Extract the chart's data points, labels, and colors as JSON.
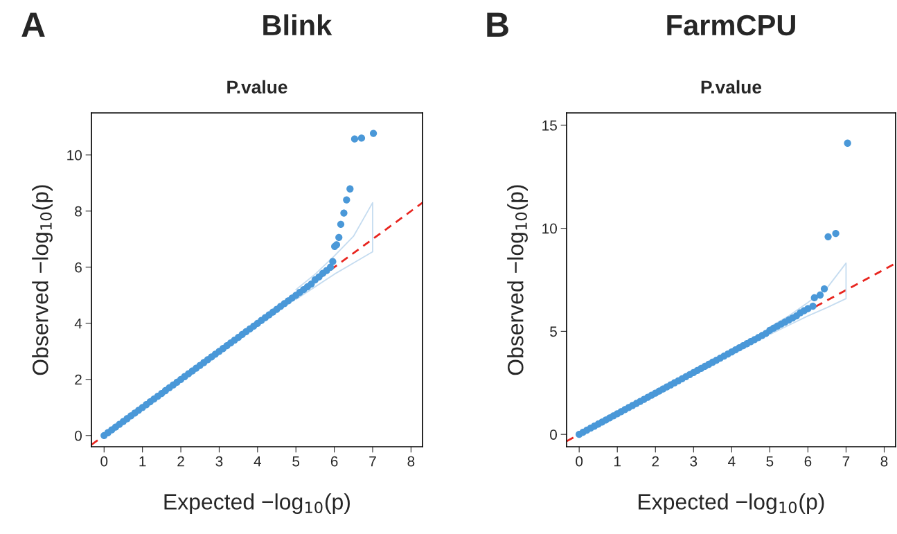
{
  "chart_data": [
    {
      "type": "scatter",
      "title": "Blink",
      "subtitle": "P.value",
      "xlabel": "Expected −log$_{10}$(p)",
      "ylabel": "Observed −log$_{10}$(p)",
      "annotations": [
        "A"
      ],
      "xlim": [
        -0.33,
        8.3
      ],
      "ylim": [
        -0.4,
        11.5
      ],
      "xticks": [
        0,
        1,
        2,
        3,
        4,
        5,
        6,
        7,
        8
      ],
      "yticks": [
        0,
        2,
        4,
        6,
        8,
        10
      ],
      "grid": false,
      "legend": false,
      "series": [
        {
          "type": "line",
          "color": "#e8251f",
          "line_style": "dashed",
          "marker": "none",
          "x": [
            -0.33,
            8.3
          ],
          "values": [
            -0.33,
            8.3
          ]
        },
        {
          "type": "line",
          "color": "#c5dcf0",
          "line_style": "solid",
          "marker": "none",
          "x": [
            5.0,
            5.5,
            6.0,
            6.5,
            7.0,
            7.0,
            6.5,
            6.0,
            5.5,
            5.0
          ],
          "values": [
            5.2,
            5.75,
            6.4,
            7.1,
            8.3,
            6.55,
            6.15,
            5.75,
            5.3,
            4.85
          ]
        },
        {
          "type": "scatter",
          "color": "#4a98d8",
          "marker": "circle",
          "x": [
            0,
            0.1,
            0.2,
            0.3,
            0.4,
            0.5,
            0.6,
            0.7,
            0.8,
            0.9,
            1.0,
            1.1,
            1.2,
            1.3,
            1.4,
            1.5,
            1.6,
            1.7,
            1.8,
            1.9,
            2.0,
            2.1,
            2.2,
            2.3,
            2.4,
            2.5,
            2.6,
            2.7,
            2.8,
            2.9,
            3.0,
            3.1,
            3.2,
            3.3,
            3.4,
            3.5,
            3.6,
            3.7,
            3.8,
            3.9,
            4.0,
            4.1,
            4.2,
            4.3,
            4.4,
            4.5,
            4.6,
            4.7,
            4.8,
            4.9,
            5.0,
            5.1,
            5.2,
            5.3,
            5.4,
            5.5,
            5.6,
            5.7,
            5.8,
            5.9,
            5.96,
            6.01,
            6.06,
            6.12,
            6.17,
            6.25,
            6.32,
            6.41,
            6.53,
            6.71,
            7.02
          ],
          "values": [
            0,
            0.1,
            0.2,
            0.3,
            0.4,
            0.5,
            0.6,
            0.7,
            0.8,
            0.9,
            1.0,
            1.1,
            1.2,
            1.3,
            1.4,
            1.5,
            1.6,
            1.7,
            1.8,
            1.9,
            2.0,
            2.1,
            2.2,
            2.3,
            2.4,
            2.5,
            2.6,
            2.7,
            2.8,
            2.9,
            3.0,
            3.1,
            3.2,
            3.3,
            3.4,
            3.5,
            3.6,
            3.7,
            3.8,
            3.9,
            4.0,
            4.1,
            4.2,
            4.3,
            4.4,
            4.5,
            4.6,
            4.7,
            4.8,
            4.9,
            5.0,
            5.1,
            5.2,
            5.3,
            5.4,
            5.55,
            5.65,
            5.78,
            5.88,
            6.0,
            6.2,
            6.74,
            6.8,
            7.06,
            7.53,
            7.93,
            8.4,
            8.79,
            10.57,
            10.6,
            10.77
          ]
        }
      ]
    },
    {
      "type": "scatter",
      "title": "FarmCPU",
      "subtitle": "P.value",
      "xlabel": "Expected −log$_{10}$(p)",
      "ylabel": "Observed −log$_{10}$(p)",
      "annotations": [
        "B"
      ],
      "xlim": [
        -0.33,
        8.3
      ],
      "ylim": [
        -0.6,
        15.6
      ],
      "xticks": [
        0,
        1,
        2,
        3,
        4,
        5,
        6,
        7,
        8
      ],
      "yticks": [
        0,
        5,
        10,
        15
      ],
      "grid": false,
      "legend": false,
      "series": [
        {
          "type": "line",
          "color": "#e8251f",
          "line_style": "dashed",
          "marker": "none",
          "x": [
            -0.33,
            8.3
          ],
          "values": [
            -0.33,
            8.3
          ]
        },
        {
          "type": "line",
          "color": "#c5dcf0",
          "line_style": "solid",
          "marker": "none",
          "x": [
            5.0,
            5.5,
            6.0,
            6.5,
            7.0,
            7.0,
            6.5,
            6.0,
            5.5,
            5.0
          ],
          "values": [
            5.2,
            5.75,
            6.4,
            7.1,
            8.31,
            6.59,
            6.15,
            5.75,
            5.3,
            4.85
          ]
        },
        {
          "type": "scatter",
          "color": "#4a98d8",
          "marker": "circle",
          "x": [
            0,
            0.1,
            0.2,
            0.3,
            0.4,
            0.5,
            0.6,
            0.7,
            0.8,
            0.9,
            1.0,
            1.1,
            1.2,
            1.3,
            1.4,
            1.5,
            1.6,
            1.7,
            1.8,
            1.9,
            2.0,
            2.1,
            2.2,
            2.3,
            2.4,
            2.5,
            2.6,
            2.7,
            2.8,
            2.9,
            3.0,
            3.1,
            3.2,
            3.3,
            3.4,
            3.5,
            3.6,
            3.7,
            3.8,
            3.9,
            4.0,
            4.1,
            4.2,
            4.3,
            4.4,
            4.5,
            4.6,
            4.7,
            4.8,
            4.9,
            5.0,
            5.1,
            5.2,
            5.3,
            5.4,
            5.5,
            5.6,
            5.7,
            5.8,
            5.9,
            6.0,
            6.13,
            6.17,
            6.32,
            6.43,
            6.53,
            6.73,
            7.04
          ],
          "values": [
            0,
            0.1,
            0.2,
            0.3,
            0.4,
            0.5,
            0.6,
            0.7,
            0.8,
            0.9,
            1.0,
            1.1,
            1.2,
            1.3,
            1.4,
            1.5,
            1.6,
            1.7,
            1.8,
            1.9,
            2.0,
            2.1,
            2.2,
            2.3,
            2.4,
            2.5,
            2.6,
            2.7,
            2.8,
            2.9,
            3.0,
            3.1,
            3.2,
            3.3,
            3.4,
            3.5,
            3.6,
            3.7,
            3.8,
            3.9,
            4.0,
            4.1,
            4.2,
            4.3,
            4.4,
            4.5,
            4.6,
            4.7,
            4.8,
            4.9,
            5.05,
            5.15,
            5.25,
            5.35,
            5.45,
            5.55,
            5.65,
            5.75,
            5.9,
            6.0,
            6.1,
            6.22,
            6.63,
            6.76,
            7.06,
            9.59,
            9.75,
            14.13
          ]
        }
      ]
    }
  ]
}
